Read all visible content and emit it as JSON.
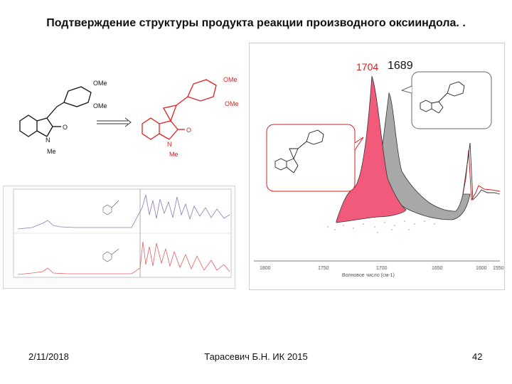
{
  "slide": {
    "title": "Подтверждение структуры продукта реакции производного оксииндола. .",
    "footer": {
      "date": "2/11/2018",
      "author": "Тарасевич Б.Н. ИК 2015",
      "page": "42"
    }
  },
  "scheme": {
    "reactant": {
      "sub1": "OMe",
      "sub2": "OMe",
      "n_label": "N",
      "n_sub": "Me",
      "carbonyl": "O"
    },
    "product": {
      "sub1": "OMe",
      "sub2": "OMe",
      "n_label": "N",
      "n_sub": "Me",
      "carbonyl": "O"
    }
  },
  "spectrum": {
    "peak_product": "1704",
    "peak_reactant": "1689",
    "x_ticks": [
      "1800",
      "1750",
      "1700",
      "1650",
      "1600",
      "1550"
    ],
    "x_axis_label": "Волновое число (см-1)",
    "colors": {
      "product": "#f25a7c",
      "reactant": "#a8a8a8",
      "accent": "#d42020"
    }
  }
}
